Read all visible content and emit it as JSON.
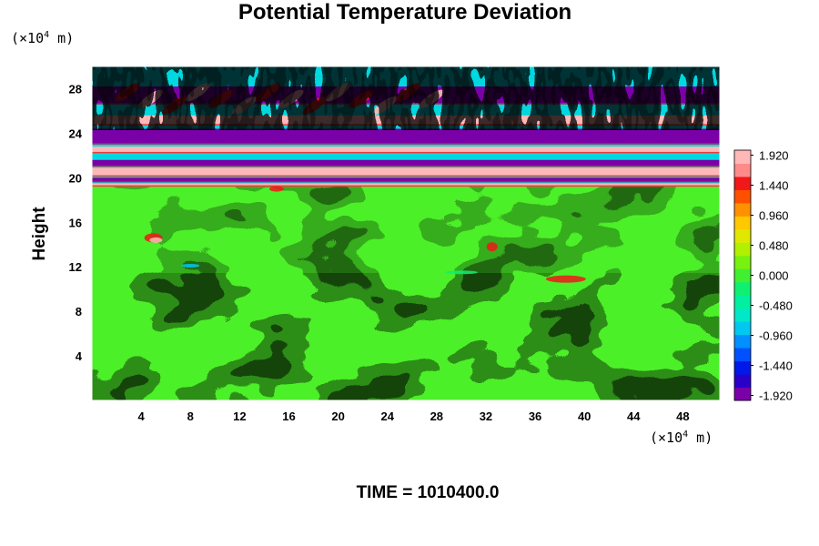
{
  "chart_data": {
    "type": "heatmap",
    "title": "Potential Temperature Deviation",
    "ylabel": "Height",
    "xlabel": "",
    "y_unit_prefix": "(×10",
    "unit_exp": "4",
    "unit_suffix": " m)",
    "x_unit_prefix": "(×10",
    "xlim": [
      0,
      51
    ],
    "ylim": [
      0,
      30
    ],
    "x_ticks": [
      "4",
      "8",
      "12",
      "16",
      "20",
      "24",
      "28",
      "32",
      "36",
      "40",
      "44",
      "48"
    ],
    "y_ticks": [
      "4",
      "8",
      "12",
      "16",
      "20",
      "24",
      "28"
    ],
    "colorbar": {
      "range": [
        -2.0,
        2.0
      ],
      "tick_labels": [
        "1.920",
        "1.440",
        "0.960",
        "0.480",
        "0.000",
        "-0.480",
        "-0.960",
        "-1.440",
        "-1.920"
      ],
      "colors": [
        "#7a00a8",
        "#2800c8",
        "#0018e8",
        "#0050ff",
        "#0090ff",
        "#00c8f0",
        "#00e8c8",
        "#00f0a0",
        "#10f070",
        "#40f030",
        "#78f010",
        "#b0f000",
        "#e0e800",
        "#ffc800",
        "#ff9000",
        "#ff5000",
        "#f01818",
        "#ff8a8a",
        "#ffb8b8"
      ]
    },
    "time_label": "TIME = 1010400.0"
  }
}
